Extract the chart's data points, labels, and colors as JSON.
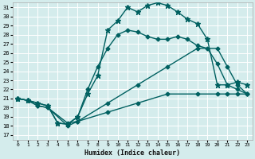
{
  "title": "",
  "xlabel": "Humidex (Indice chaleur)",
  "bg_color": "#d4ecec",
  "grid_color": "#ffffff",
  "line_color": "#006060",
  "xlim": [
    -0.5,
    23.5
  ],
  "ylim": [
    16.5,
    31.5
  ],
  "xticks": [
    0,
    1,
    2,
    3,
    4,
    5,
    6,
    7,
    8,
    9,
    10,
    11,
    12,
    13,
    14,
    15,
    16,
    17,
    18,
    19,
    20,
    21,
    22,
    23
  ],
  "yticks": [
    17,
    18,
    19,
    20,
    21,
    22,
    23,
    24,
    25,
    26,
    27,
    28,
    29,
    30,
    31
  ],
  "series": [
    {
      "x": [
        0,
        1,
        2,
        3,
        4,
        5,
        6,
        7,
        8,
        9,
        10,
        11,
        12,
        13,
        14,
        15,
        16,
        17,
        18,
        19,
        20,
        21,
        22,
        23
      ],
      "y": [
        21.0,
        20.8,
        20.5,
        20.2,
        18.3,
        18.2,
        19.0,
        21.5,
        23.5,
        28.5,
        29.5,
        31.0,
        30.5,
        31.2,
        31.5,
        31.2,
        30.5,
        29.7,
        29.2,
        27.5,
        22.5,
        22.5,
        22.8,
        22.5
      ],
      "marker": "*",
      "markersize": 4.5,
      "lw": 1.0
    },
    {
      "x": [
        0,
        1,
        2,
        3,
        4,
        5,
        6,
        7,
        8,
        9,
        10,
        11,
        12,
        13,
        14,
        15,
        16,
        17,
        18,
        19,
        20,
        21,
        22,
        23
      ],
      "y": [
        21.0,
        20.8,
        20.5,
        20.2,
        18.3,
        18.2,
        19.0,
        22.0,
        24.5,
        26.5,
        28.0,
        28.5,
        28.3,
        27.8,
        27.5,
        27.5,
        27.8,
        27.5,
        26.8,
        26.5,
        24.8,
        22.5,
        22.0,
        21.5
      ],
      "marker": "D",
      "markersize": 2.5,
      "lw": 1.0
    },
    {
      "x": [
        0,
        1,
        2,
        3,
        5,
        6,
        9,
        12,
        15,
        18,
        20,
        21,
        22,
        23
      ],
      "y": [
        21.0,
        20.8,
        20.2,
        20.0,
        18.3,
        18.5,
        20.5,
        22.5,
        24.5,
        26.5,
        26.5,
        24.5,
        22.5,
        21.5
      ],
      "marker": "D",
      "markersize": 2.5,
      "lw": 1.0
    },
    {
      "x": [
        0,
        1,
        2,
        3,
        5,
        6,
        9,
        12,
        15,
        18,
        20,
        21,
        22,
        23
      ],
      "y": [
        21.0,
        20.8,
        20.2,
        20.0,
        18.0,
        18.5,
        19.5,
        20.5,
        21.5,
        21.5,
        21.5,
        21.5,
        21.5,
        21.5
      ],
      "marker": "D",
      "markersize": 2.5,
      "lw": 1.0
    }
  ]
}
